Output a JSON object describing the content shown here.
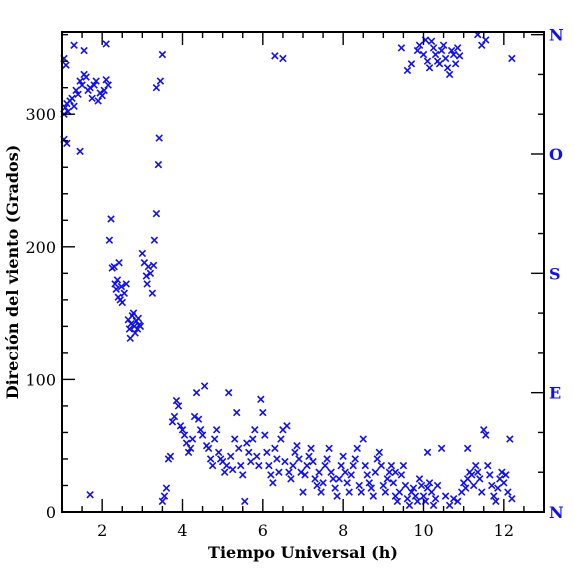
{
  "chart_data": {
    "type": "scatter",
    "title": "",
    "xlabel": "Tiempo Universal (h)",
    "ylabel": "Direción del viento (Grados)",
    "xlim": [
      1.0,
      13.0
    ],
    "ylim": [
      0,
      362
    ],
    "xticks": [
      2,
      4,
      6,
      8,
      10,
      12
    ],
    "yticks": [
      0,
      100,
      200,
      300
    ],
    "grid": false,
    "legend": "none",
    "marker": "x",
    "colors": {
      "points": "#1010ee",
      "axes": "#000000",
      "direction_labels": "#1010ee"
    },
    "right_axis": {
      "labels": [
        {
          "label": "N",
          "value": 360
        },
        {
          "label": "O",
          "value": 270
        },
        {
          "label": "S",
          "value": 180
        },
        {
          "label": "E",
          "value": 90
        },
        {
          "label": "N",
          "value": 0
        }
      ]
    },
    "series": [
      {
        "points": [
          [
            1.05,
            300
          ],
          [
            1.08,
            305
          ],
          [
            1.12,
            308
          ],
          [
            1.15,
            302
          ],
          [
            1.2,
            310
          ],
          [
            1.25,
            312
          ],
          [
            1.3,
            306
          ],
          [
            1.35,
            318
          ],
          [
            1.4,
            315
          ],
          [
            1.45,
            325
          ],
          [
            1.5,
            322
          ],
          [
            1.55,
            330
          ],
          [
            1.6,
            328
          ],
          [
            1.65,
            318
          ],
          [
            1.7,
            320
          ],
          [
            1.75,
            312
          ],
          [
            1.8,
            322
          ],
          [
            1.85,
            325
          ],
          [
            1.9,
            310
          ],
          [
            1.95,
            316
          ],
          [
            2.0,
            314
          ],
          [
            2.05,
            318
          ],
          [
            2.1,
            326
          ],
          [
            2.15,
            322
          ],
          [
            1.05,
            342
          ],
          [
            1.3,
            352
          ],
          [
            1.55,
            348
          ],
          [
            2.1,
            353
          ],
          [
            1.1,
            337
          ],
          [
            1.05,
            281
          ],
          [
            1.12,
            278
          ],
          [
            1.45,
            272
          ],
          [
            1.7,
            13
          ],
          [
            2.18,
            205
          ],
          [
            2.22,
            221
          ],
          [
            2.25,
            184
          ],
          [
            2.3,
            185
          ],
          [
            2.32,
            172
          ],
          [
            2.35,
            168
          ],
          [
            2.38,
            175
          ],
          [
            2.4,
            162
          ],
          [
            2.42,
            188
          ],
          [
            2.45,
            160
          ],
          [
            2.48,
            170
          ],
          [
            2.5,
            158
          ],
          [
            2.55,
            165
          ],
          [
            2.6,
            172
          ],
          [
            2.65,
            145
          ],
          [
            2.68,
            138
          ],
          [
            2.7,
            131
          ],
          [
            2.72,
            142
          ],
          [
            2.75,
            148
          ],
          [
            2.78,
            150
          ],
          [
            2.8,
            140
          ],
          [
            2.82,
            135
          ],
          [
            2.85,
            144
          ],
          [
            2.88,
            138
          ],
          [
            2.9,
            146
          ],
          [
            2.92,
            141
          ],
          [
            2.95,
            140
          ],
          [
            3.0,
            195
          ],
          [
            3.05,
            188
          ],
          [
            3.1,
            178
          ],
          [
            3.12,
            172
          ],
          [
            3.15,
            185
          ],
          [
            3.2,
            180
          ],
          [
            3.25,
            165
          ],
          [
            3.28,
            186
          ],
          [
            3.3,
            205
          ],
          [
            3.35,
            225
          ],
          [
            3.4,
            262
          ],
          [
            3.42,
            282
          ],
          [
            3.45,
            325
          ],
          [
            3.5,
            345
          ],
          [
            3.35,
            320
          ],
          [
            3.5,
            8
          ],
          [
            3.55,
            12
          ],
          [
            3.6,
            18
          ],
          [
            3.65,
            40
          ],
          [
            3.7,
            42
          ],
          [
            3.75,
            68
          ],
          [
            3.8,
            72
          ],
          [
            3.85,
            84
          ],
          [
            3.9,
            80
          ],
          [
            3.95,
            65
          ],
          [
            4.0,
            62
          ],
          [
            4.05,
            58
          ],
          [
            4.1,
            52
          ],
          [
            4.15,
            45
          ],
          [
            4.2,
            48
          ],
          [
            4.25,
            55
          ],
          [
            4.3,
            72
          ],
          [
            4.35,
            90
          ],
          [
            4.4,
            70
          ],
          [
            4.45,
            62
          ],
          [
            4.5,
            58
          ],
          [
            4.55,
            95
          ],
          [
            4.6,
            50
          ],
          [
            4.65,
            48
          ],
          [
            4.7,
            40
          ],
          [
            4.75,
            35
          ],
          [
            4.8,
            55
          ],
          [
            4.85,
            62
          ],
          [
            4.9,
            45
          ],
          [
            4.95,
            40
          ],
          [
            5.0,
            38
          ],
          [
            5.05,
            30
          ],
          [
            5.1,
            35
          ],
          [
            5.15,
            90
          ],
          [
            5.2,
            42
          ],
          [
            5.25,
            32
          ],
          [
            5.3,
            55
          ],
          [
            5.35,
            75
          ],
          [
            5.4,
            48
          ],
          [
            5.45,
            35
          ],
          [
            5.5,
            28
          ],
          [
            5.55,
            8
          ],
          [
            5.6,
            52
          ],
          [
            5.65,
            45
          ],
          [
            5.7,
            38
          ],
          [
            5.75,
            55
          ],
          [
            5.8,
            62
          ],
          [
            5.85,
            42
          ],
          [
            5.9,
            35
          ],
          [
            5.95,
            85
          ],
          [
            6.0,
            75
          ],
          [
            6.05,
            58
          ],
          [
            6.1,
            45
          ],
          [
            6.15,
            35
          ],
          [
            6.2,
            28
          ],
          [
            6.25,
            22
          ],
          [
            6.3,
            48
          ],
          [
            6.35,
            40
          ],
          [
            6.4,
            30
          ],
          [
            6.45,
            55
          ],
          [
            6.5,
            62
          ],
          [
            6.55,
            38
          ],
          [
            6.6,
            65
          ],
          [
            6.65,
            30
          ],
          [
            6.7,
            25
          ],
          [
            6.75,
            35
          ],
          [
            6.8,
            45
          ],
          [
            6.85,
            50
          ],
          [
            6.9,
            40
          ],
          [
            6.95,
            30
          ],
          [
            7.0,
            15
          ],
          [
            7.05,
            28
          ],
          [
            7.1,
            35
          ],
          [
            7.15,
            42
          ],
          [
            7.2,
            48
          ],
          [
            7.25,
            38
          ],
          [
            7.3,
            25
          ],
          [
            7.35,
            20
          ],
          [
            7.4,
            30
          ],
          [
            7.45,
            15
          ],
          [
            7.5,
            22
          ],
          [
            7.55,
            35
          ],
          [
            7.6,
            40
          ],
          [
            7.65,
            48
          ],
          [
            7.7,
            30
          ],
          [
            7.75,
            25
          ],
          [
            7.8,
            18
          ],
          [
            7.85,
            12
          ],
          [
            7.9,
            25
          ],
          [
            7.95,
            35
          ],
          [
            8.0,
            42
          ],
          [
            8.05,
            30
          ],
          [
            8.1,
            22
          ],
          [
            8.15,
            15
          ],
          [
            8.2,
            28
          ],
          [
            8.25,
            35
          ],
          [
            8.3,
            40
          ],
          [
            8.35,
            48
          ],
          [
            8.4,
            20
          ],
          [
            8.45,
            15
          ],
          [
            8.5,
            55
          ],
          [
            8.55,
            35
          ],
          [
            8.6,
            28
          ],
          [
            8.65,
            22
          ],
          [
            8.7,
            18
          ],
          [
            8.75,
            12
          ],
          [
            8.8,
            30
          ],
          [
            8.85,
            40
          ],
          [
            8.9,
            45
          ],
          [
            8.95,
            35
          ],
          [
            9.0,
            20
          ],
          [
            9.05,
            15
          ],
          [
            9.1,
            25
          ],
          [
            9.15,
            30
          ],
          [
            9.2,
            35
          ],
          [
            9.25,
            22
          ],
          [
            9.3,
            12
          ],
          [
            9.35,
            8
          ],
          [
            9.4,
            15
          ],
          [
            9.45,
            28
          ],
          [
            9.5,
            35
          ],
          [
            9.55,
            20
          ],
          [
            9.6,
            10
          ],
          [
            9.65,
            5
          ],
          [
            9.7,
            15
          ],
          [
            9.75,
            18
          ],
          [
            9.8,
            12
          ],
          [
            9.85,
            8
          ],
          [
            9.9,
            25
          ],
          [
            9.95,
            20
          ],
          [
            10.0,
            12
          ],
          [
            10.05,
            8
          ],
          [
            10.1,
            18
          ],
          [
            10.15,
            22
          ],
          [
            10.2,
            15
          ],
          [
            10.25,
            5
          ],
          [
            10.3,
            10
          ],
          [
            10.35,
            20
          ],
          [
            10.45,
            48
          ],
          [
            10.55,
            12
          ],
          [
            10.65,
            5
          ],
          [
            10.75,
            10
          ],
          [
            10.85,
            8
          ],
          [
            10.95,
            15
          ],
          [
            11.0,
            22
          ],
          [
            11.05,
            18
          ],
          [
            11.1,
            25
          ],
          [
            11.15,
            30
          ],
          [
            11.2,
            28
          ],
          [
            11.25,
            20
          ],
          [
            11.3,
            35
          ],
          [
            11.35,
            30
          ],
          [
            11.4,
            25
          ],
          [
            11.45,
            15
          ],
          [
            11.5,
            62
          ],
          [
            11.55,
            58
          ],
          [
            11.6,
            35
          ],
          [
            11.65,
            28
          ],
          [
            11.7,
            20
          ],
          [
            11.75,
            12
          ],
          [
            11.8,
            8
          ],
          [
            11.85,
            18
          ],
          [
            11.9,
            25
          ],
          [
            11.95,
            30
          ],
          [
            12.0,
            22
          ],
          [
            12.05,
            28
          ],
          [
            12.1,
            15
          ],
          [
            12.15,
            55
          ],
          [
            12.2,
            10
          ],
          [
            9.3,
            30
          ],
          [
            10.1,
            45
          ],
          [
            11.1,
            48
          ],
          [
            6.3,
            344
          ],
          [
            6.5,
            342
          ],
          [
            9.45,
            350
          ],
          [
            9.6,
            333
          ],
          [
            9.7,
            338
          ],
          [
            9.85,
            348
          ],
          [
            9.9,
            352
          ],
          [
            10.0,
            345
          ],
          [
            10.1,
            340
          ],
          [
            10.15,
            335
          ],
          [
            10.2,
            355
          ],
          [
            10.25,
            350
          ],
          [
            10.3,
            345
          ],
          [
            10.35,
            340
          ],
          [
            10.4,
            338
          ],
          [
            10.45,
            348
          ],
          [
            10.5,
            352
          ],
          [
            10.55,
            342
          ],
          [
            10.6,
            335
          ],
          [
            10.65,
            330
          ],
          [
            10.7,
            348
          ],
          [
            10.75,
            345
          ],
          [
            10.8,
            338
          ],
          [
            10.85,
            350
          ],
          [
            10.9,
            344
          ],
          [
            11.35,
            360
          ],
          [
            11.45,
            352
          ],
          [
            11.55,
            356
          ],
          [
            12.2,
            342
          ],
          [
            10.05,
            356
          ]
        ]
      }
    ]
  }
}
